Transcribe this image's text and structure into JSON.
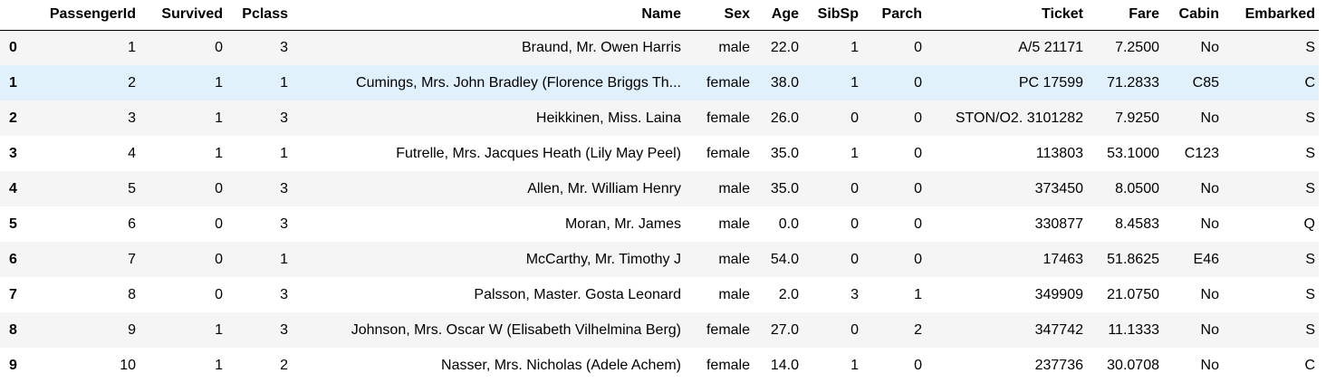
{
  "table": {
    "index_header": "",
    "columns": [
      "PassengerId",
      "Survived",
      "Pclass",
      "Name",
      "Sex",
      "Age",
      "SibSp",
      "Parch",
      "Ticket",
      "Fare",
      "Cabin",
      "Embarked"
    ],
    "highlighted_row": 1,
    "highlight_color": "#e1f1fb",
    "stripe_color": "#f5f5f5",
    "rows": [
      {
        "index": "0",
        "cells": [
          "1",
          "0",
          "3",
          "Braund, Mr. Owen Harris",
          "male",
          "22.0",
          "1",
          "0",
          "A/5 21171",
          "7.2500",
          "No",
          "S"
        ]
      },
      {
        "index": "1",
        "cells": [
          "2",
          "1",
          "1",
          "Cumings, Mrs. John Bradley (Florence Briggs Th...",
          "female",
          "38.0",
          "1",
          "0",
          "PC 17599",
          "71.2833",
          "C85",
          "C"
        ]
      },
      {
        "index": "2",
        "cells": [
          "3",
          "1",
          "3",
          "Heikkinen, Miss. Laina",
          "female",
          "26.0",
          "0",
          "0",
          "STON/O2. 3101282",
          "7.9250",
          "No",
          "S"
        ]
      },
      {
        "index": "3",
        "cells": [
          "4",
          "1",
          "1",
          "Futrelle, Mrs. Jacques Heath (Lily May Peel)",
          "female",
          "35.0",
          "1",
          "0",
          "113803",
          "53.1000",
          "C123",
          "S"
        ]
      },
      {
        "index": "4",
        "cells": [
          "5",
          "0",
          "3",
          "Allen, Mr. William Henry",
          "male",
          "35.0",
          "0",
          "0",
          "373450",
          "8.0500",
          "No",
          "S"
        ]
      },
      {
        "index": "5",
        "cells": [
          "6",
          "0",
          "3",
          "Moran, Mr. James",
          "male",
          "0.0",
          "0",
          "0",
          "330877",
          "8.4583",
          "No",
          "Q"
        ]
      },
      {
        "index": "6",
        "cells": [
          "7",
          "0",
          "1",
          "McCarthy, Mr. Timothy J",
          "male",
          "54.0",
          "0",
          "0",
          "17463",
          "51.8625",
          "E46",
          "S"
        ]
      },
      {
        "index": "7",
        "cells": [
          "8",
          "0",
          "3",
          "Palsson, Master. Gosta Leonard",
          "male",
          "2.0",
          "3",
          "1",
          "349909",
          "21.0750",
          "No",
          "S"
        ]
      },
      {
        "index": "8",
        "cells": [
          "9",
          "1",
          "3",
          "Johnson, Mrs. Oscar W (Elisabeth Vilhelmina Berg)",
          "female",
          "27.0",
          "0",
          "2",
          "347742",
          "11.1333",
          "No",
          "S"
        ]
      },
      {
        "index": "9",
        "cells": [
          "10",
          "1",
          "2",
          "Nasser, Mrs. Nicholas (Adele Achem)",
          "female",
          "14.0",
          "1",
          "0",
          "237736",
          "30.0708",
          "No",
          "C"
        ]
      }
    ]
  }
}
